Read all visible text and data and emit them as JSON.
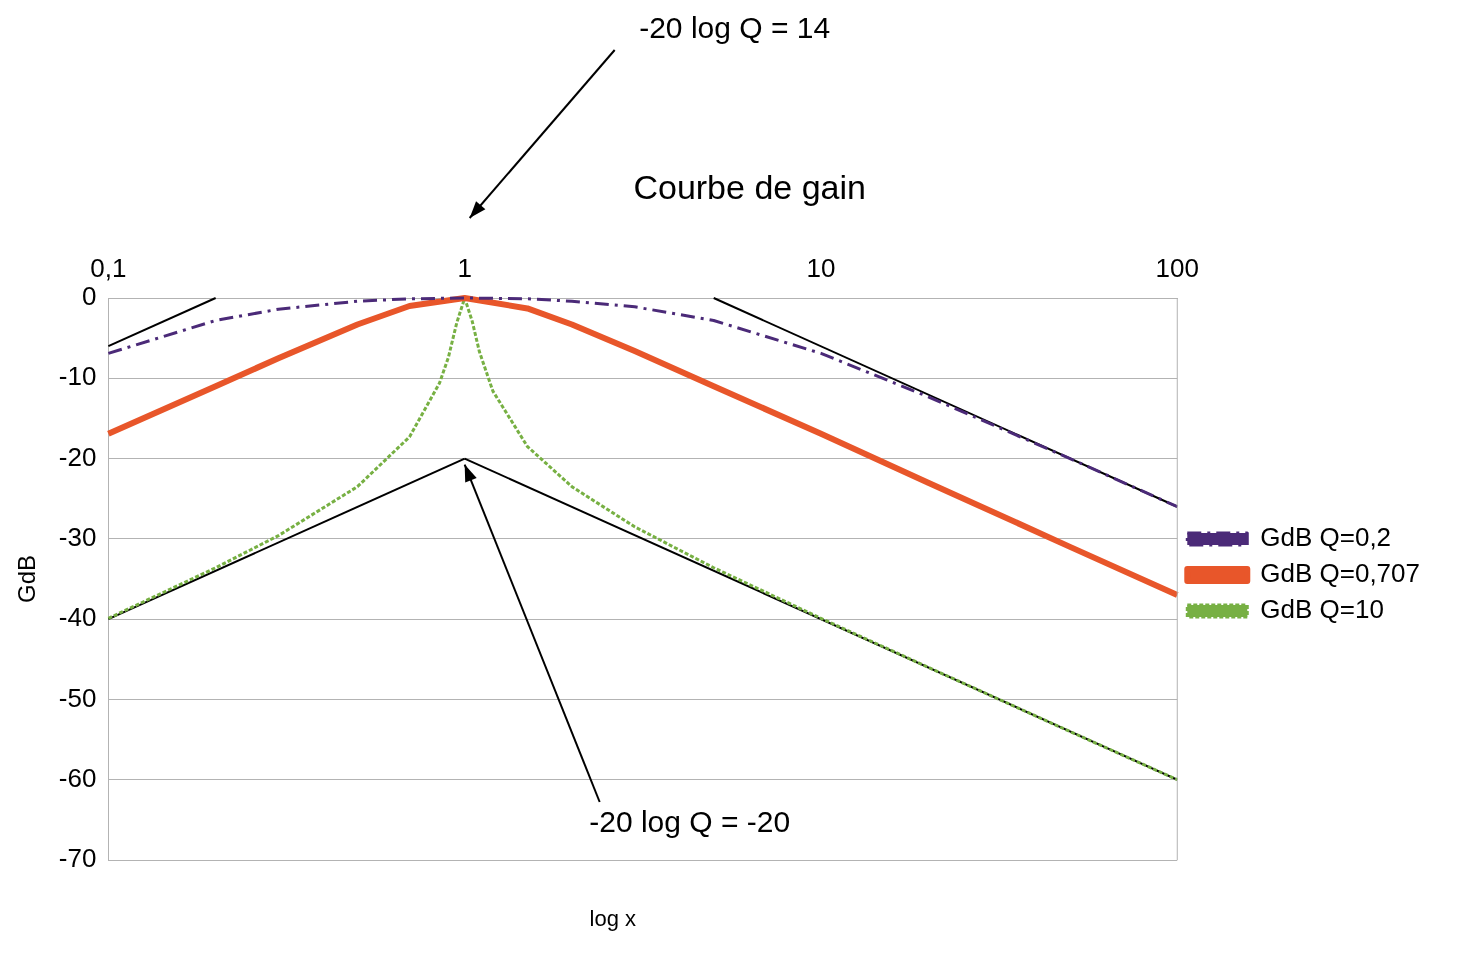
{
  "chart_data": {
    "type": "line",
    "title": "Courbe de gain",
    "xlabel": "log x",
    "ylabel": "GdB",
    "log": "x",
    "grid": "y",
    "legend": "right",
    "xlim": [
      0.1,
      100
    ],
    "xticks": [
      {
        "value": 0.1,
        "label": "0,1"
      },
      1,
      10,
      100
    ],
    "ylim": [
      -70,
      0
    ],
    "yticks": [
      -70,
      -60,
      -50,
      -40,
      -30,
      -20,
      -10,
      0
    ],
    "annotations": [
      "-20 log Q = 14",
      {
        "text": "-20 log Q = -20",
        "x": 1,
        "y": -20
      }
    ],
    "series": [
      {
        "name": "GdB Q=0,2",
        "color": "#4b2a78",
        "line_style": "dashed",
        "x": [
          0.1,
          0.2,
          0.3,
          0.5,
          0.7,
          1,
          1.5,
          2,
          3,
          5,
          10,
          20,
          50,
          100
        ],
        "values": [
          -6.9,
          -2.8,
          -1.4,
          -0.4,
          -0.1,
          0,
          -0.1,
          -0.4,
          -1.1,
          -2.8,
          -6.9,
          -12.3,
          -20,
          -26
        ]
      },
      {
        "name": "GdB Q=0,707",
        "color": "#e8562a",
        "line_style": "solid",
        "x": [
          0.1,
          0.2,
          0.3,
          0.5,
          0.7,
          1,
          1.5,
          2,
          3,
          5,
          10,
          20,
          50,
          100
        ],
        "values": [
          -16.9,
          -11,
          -7.5,
          -3.3,
          -1,
          0,
          -1.3,
          -3.3,
          -6.6,
          -11,
          -16.9,
          -23,
          -31,
          -37
        ]
      },
      {
        "name": "GdB Q=10",
        "color": "#77b043",
        "line_style": "dotted",
        "x": [
          0.1,
          0.2,
          0.3,
          0.5,
          0.7,
          0.85,
          0.9,
          0.95,
          1,
          1.05,
          1.1,
          1.2,
          1.5,
          2,
          3,
          5,
          10,
          20,
          50,
          100
        ],
        "values": [
          -39.9,
          -33.6,
          -29.6,
          -23.5,
          -17.3,
          -10.6,
          -7.4,
          -3.1,
          0,
          -2.9,
          -6.7,
          -11.6,
          -18.5,
          -23.5,
          -28.5,
          -33.6,
          -39.9,
          -46,
          -54,
          -60
        ]
      },
      {
        "type": "line",
        "color": "#000000",
        "line_style": "solid",
        "x": [
          0.1,
          0.2
        ],
        "values": [
          -6,
          0
        ]
      },
      {
        "type": "line",
        "color": "#000000",
        "line_style": "solid",
        "x": [
          5,
          100
        ],
        "values": [
          0,
          -26
        ]
      },
      {
        "type": "line",
        "color": "#000000",
        "line_style": "solid",
        "x": [
          0.1,
          1
        ],
        "values": [
          -40,
          -20
        ]
      },
      {
        "type": "line",
        "color": "#000000",
        "line_style": "solid",
        "x": [
          1,
          100
        ],
        "values": [
          -20,
          -60
        ]
      }
    ]
  }
}
